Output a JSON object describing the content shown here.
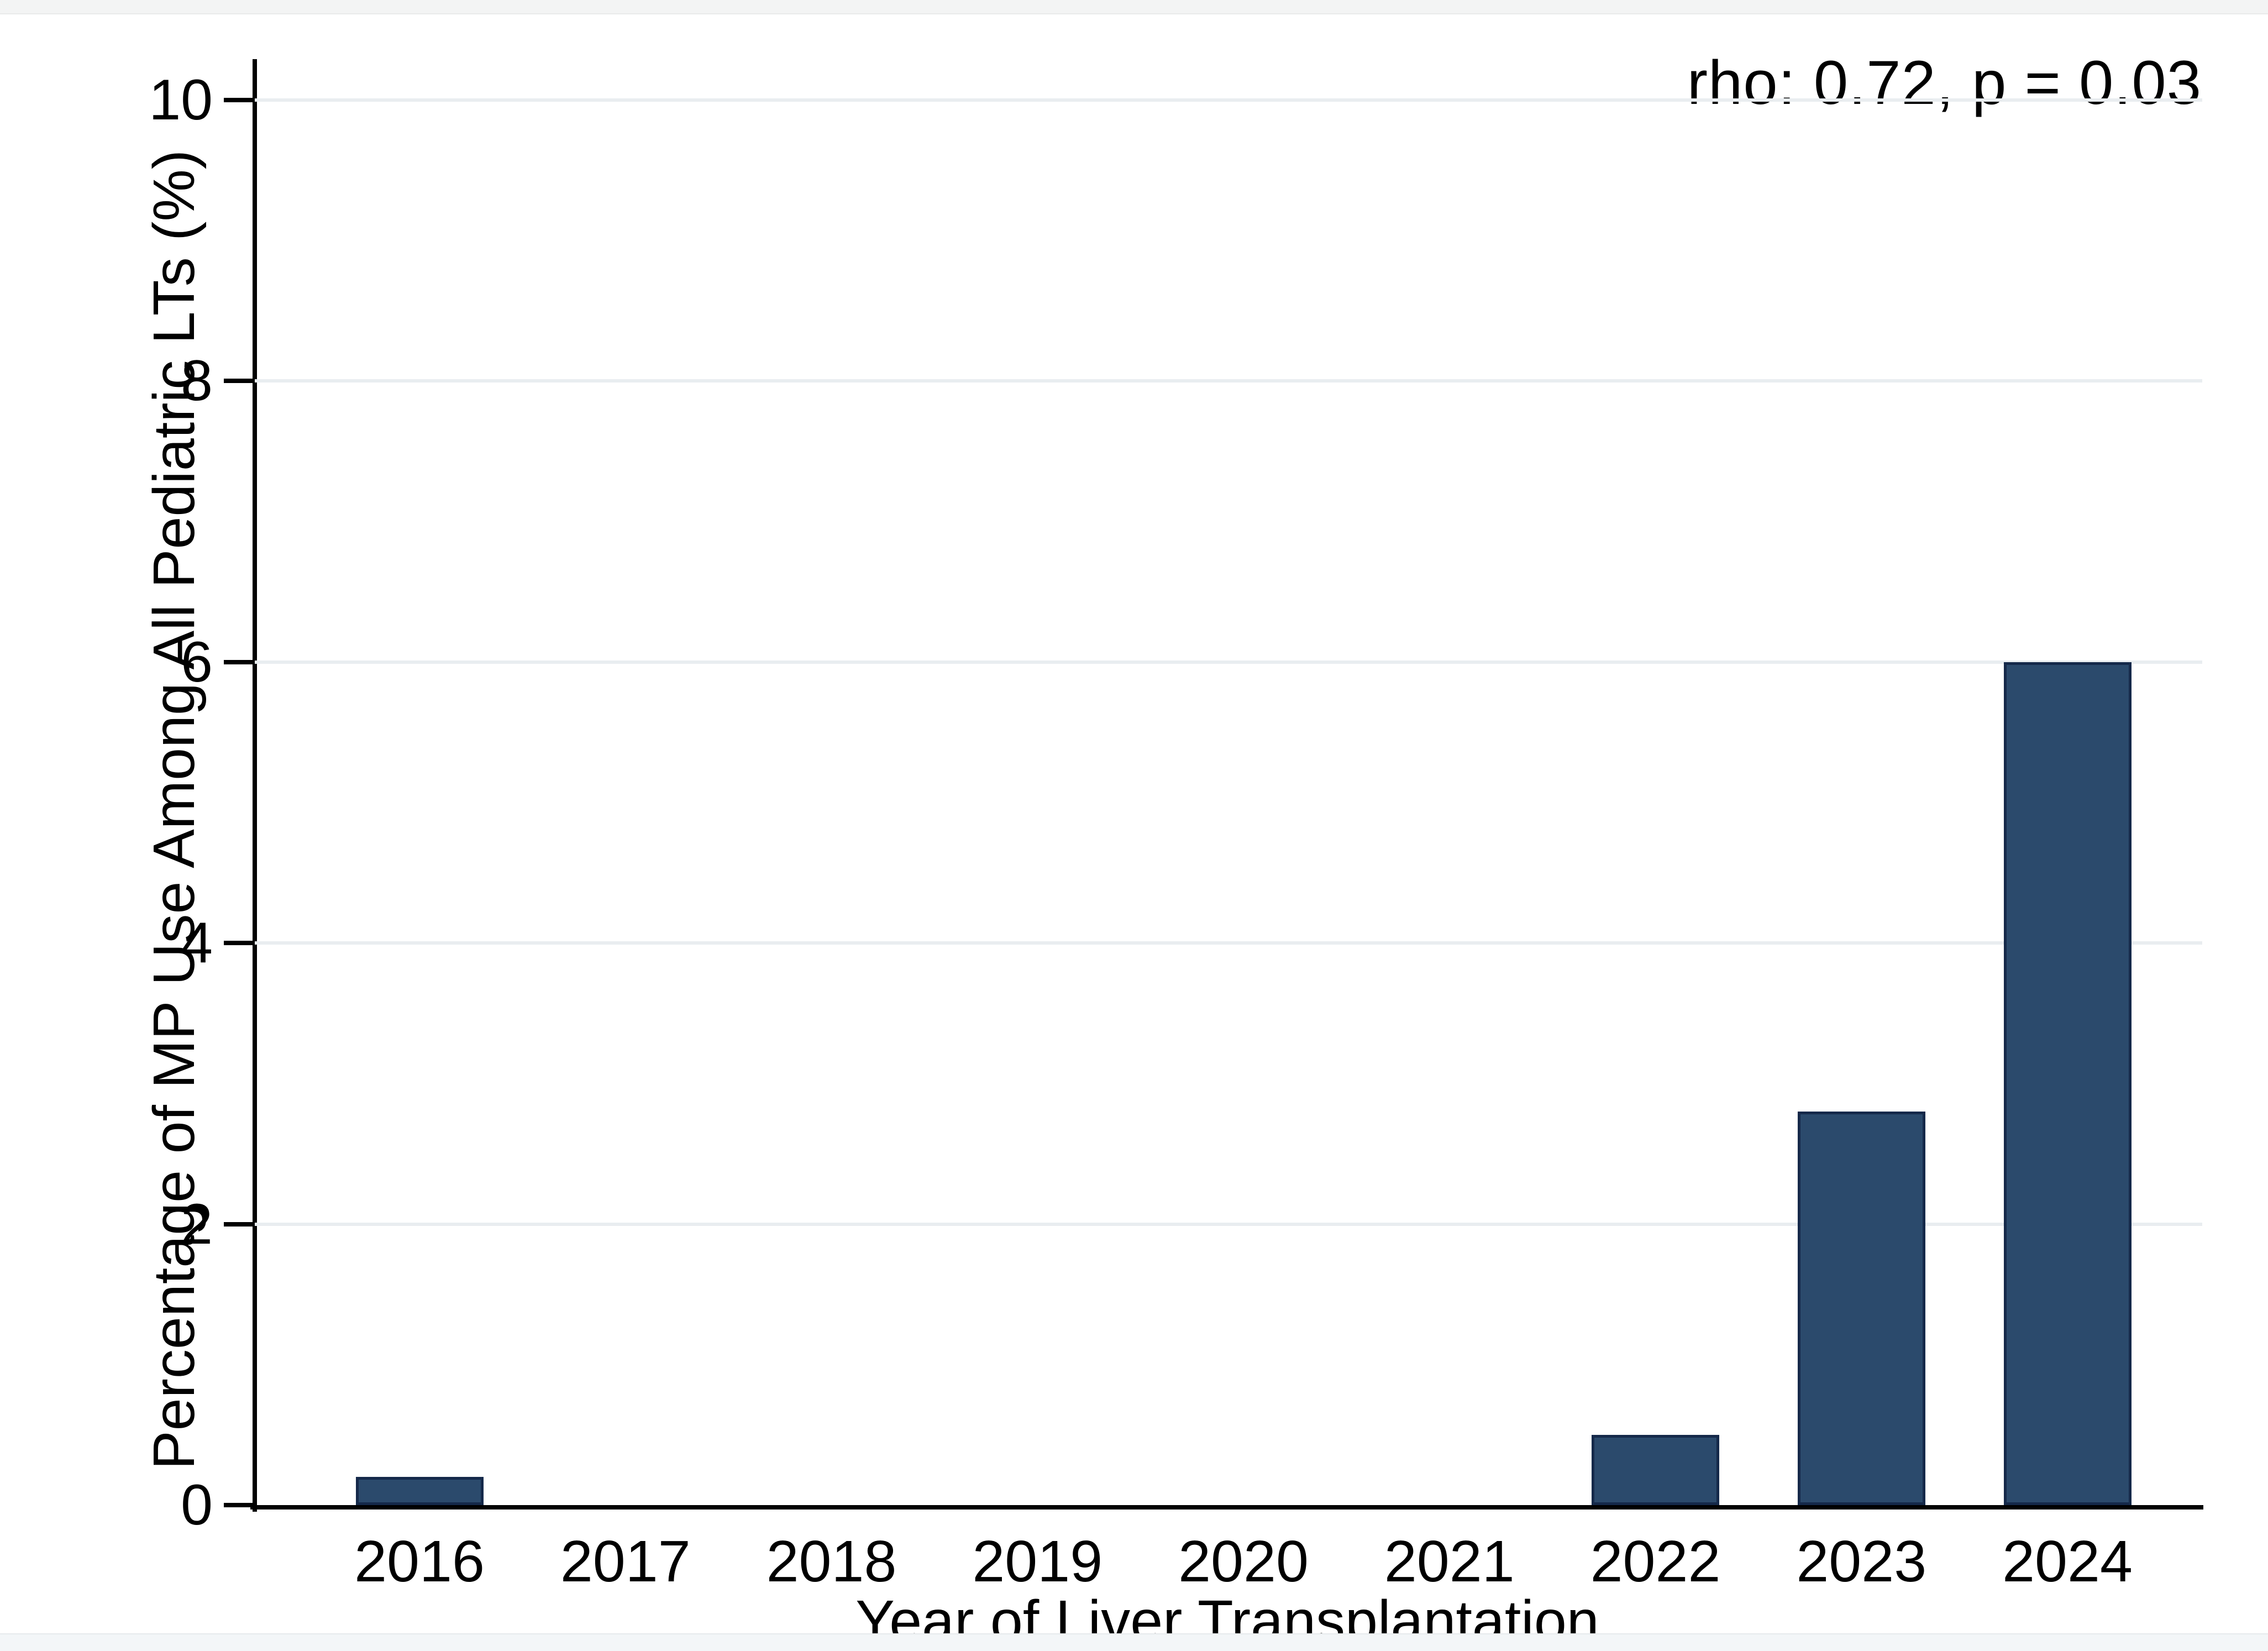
{
  "window": {
    "top_strip_color": "#f3f4f4",
    "bottom_strip_color": "#f3f6f8"
  },
  "chart_data": {
    "type": "bar",
    "title": "",
    "annotation": "rho: 0.72, p = 0.03",
    "categories": [
      "2016",
      "2017",
      "2018",
      "2019",
      "2020",
      "2021",
      "2022",
      "2023",
      "2024"
    ],
    "values": [
      0.2,
      0,
      0,
      0,
      0,
      0,
      0.5,
      2.8,
      6.0
    ],
    "xlabel": "Year of Liver Transplantation",
    "ylabel": "Percentage of MP Use Among All Pediatric LTs (%)",
    "ylim": [
      0,
      10
    ],
    "yticks": [
      0,
      2,
      4,
      6,
      8,
      10
    ],
    "grid": true,
    "legend": "none",
    "colors": {
      "bar_fill": "#2b4a6c",
      "bar_border": "#15294a",
      "gridline": "#e9edf0",
      "axis": "#000000",
      "text": "#000000",
      "background": "#ffffff"
    }
  }
}
